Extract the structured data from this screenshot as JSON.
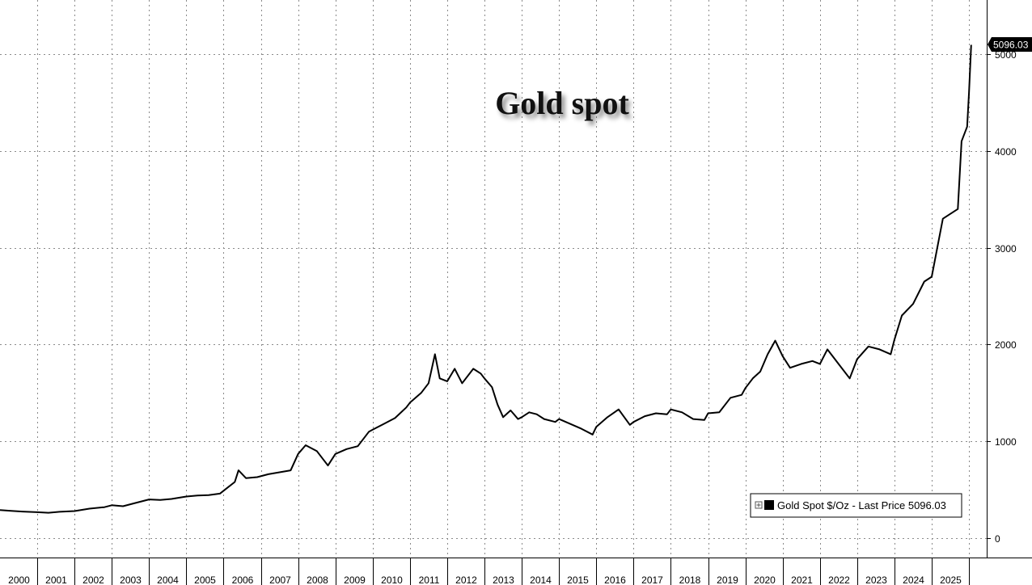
{
  "chart_data": {
    "type": "line",
    "title": "Gold spot",
    "xlabel": "",
    "ylabel": "",
    "x_categories": [
      "2000",
      "2001",
      "2002",
      "2003",
      "2004",
      "2005",
      "2006",
      "2007",
      "2008",
      "2009",
      "2010",
      "2011",
      "2012",
      "2013",
      "2014",
      "2015",
      "2016",
      "2017",
      "2018",
      "2019",
      "2020",
      "2021",
      "2022",
      "2023",
      "2024",
      "2025"
    ],
    "yticks": [
      0,
      1000,
      2000,
      3000,
      4000,
      5000
    ],
    "ylim": [
      -200,
      5500
    ],
    "xlim": [
      2000.0,
      2026.3
    ],
    "grid": true,
    "legend_position": "bottom-right",
    "series": [
      {
        "name": "Gold Spot $/Oz",
        "legend_label": "Gold Spot $/Oz - Last Price 5096.03",
        "color": "#000000",
        "last_value": "5096.03",
        "x": [
          2000.0,
          2000.3,
          2000.6,
          2001.0,
          2001.3,
          2001.6,
          2002.0,
          2002.4,
          2002.8,
          2003.0,
          2003.3,
          2003.6,
          2004.0,
          2004.3,
          2004.6,
          2005.0,
          2005.3,
          2005.6,
          2005.9,
          2006.1,
          2006.3,
          2006.4,
          2006.6,
          2006.9,
          2007.2,
          2007.5,
          2007.8,
          2008.0,
          2008.2,
          2008.5,
          2008.7,
          2008.8,
          2009.0,
          2009.3,
          2009.6,
          2009.9,
          2010.0,
          2010.3,
          2010.6,
          2010.9,
          2011.0,
          2011.3,
          2011.5,
          2011.67,
          2011.8,
          2012.0,
          2012.2,
          2012.4,
          2012.7,
          2012.9,
          2013.0,
          2013.2,
          2013.35,
          2013.5,
          2013.7,
          2013.9,
          2014.0,
          2014.2,
          2014.4,
          2014.6,
          2014.9,
          2015.0,
          2015.3,
          2015.6,
          2015.9,
          2016.0,
          2016.3,
          2016.6,
          2016.9,
          2017.0,
          2017.3,
          2017.6,
          2017.9,
          2018.0,
          2018.3,
          2018.6,
          2018.9,
          2019.0,
          2019.3,
          2019.6,
          2019.9,
          2020.0,
          2020.2,
          2020.4,
          2020.6,
          2020.8,
          2021.0,
          2021.2,
          2021.5,
          2021.8,
          2022.0,
          2022.2,
          2022.5,
          2022.8,
          2023.0,
          2023.3,
          2023.6,
          2023.9,
          2024.0,
          2024.2,
          2024.5,
          2024.8,
          2025.0,
          2025.2,
          2025.3,
          2025.5,
          2025.7,
          2025.8,
          2025.9,
          2025.95,
          2026.0,
          2026.06
        ],
        "y": [
          290,
          282,
          275,
          268,
          262,
          272,
          280,
          305,
          320,
          340,
          330,
          360,
          400,
          395,
          405,
          430,
          440,
          445,
          460,
          520,
          580,
          700,
          620,
          630,
          660,
          680,
          700,
          870,
          960,
          900,
          800,
          750,
          870,
          920,
          950,
          1100,
          1120,
          1180,
          1240,
          1350,
          1400,
          1500,
          1600,
          1900,
          1650,
          1620,
          1750,
          1600,
          1750,
          1700,
          1650,
          1560,
          1380,
          1250,
          1320,
          1230,
          1250,
          1300,
          1280,
          1230,
          1200,
          1230,
          1180,
          1130,
          1070,
          1150,
          1250,
          1330,
          1170,
          1200,
          1260,
          1290,
          1280,
          1330,
          1300,
          1230,
          1220,
          1290,
          1300,
          1450,
          1480,
          1550,
          1650,
          1720,
          1900,
          2040,
          1880,
          1760,
          1800,
          1830,
          1800,
          1950,
          1800,
          1650,
          1850,
          1980,
          1950,
          1900,
          2050,
          2300,
          2420,
          2650,
          2700,
          3100,
          3300,
          3350,
          3400,
          4100,
          4200,
          4250,
          4600,
          5096.03
        ]
      }
    ]
  }
}
